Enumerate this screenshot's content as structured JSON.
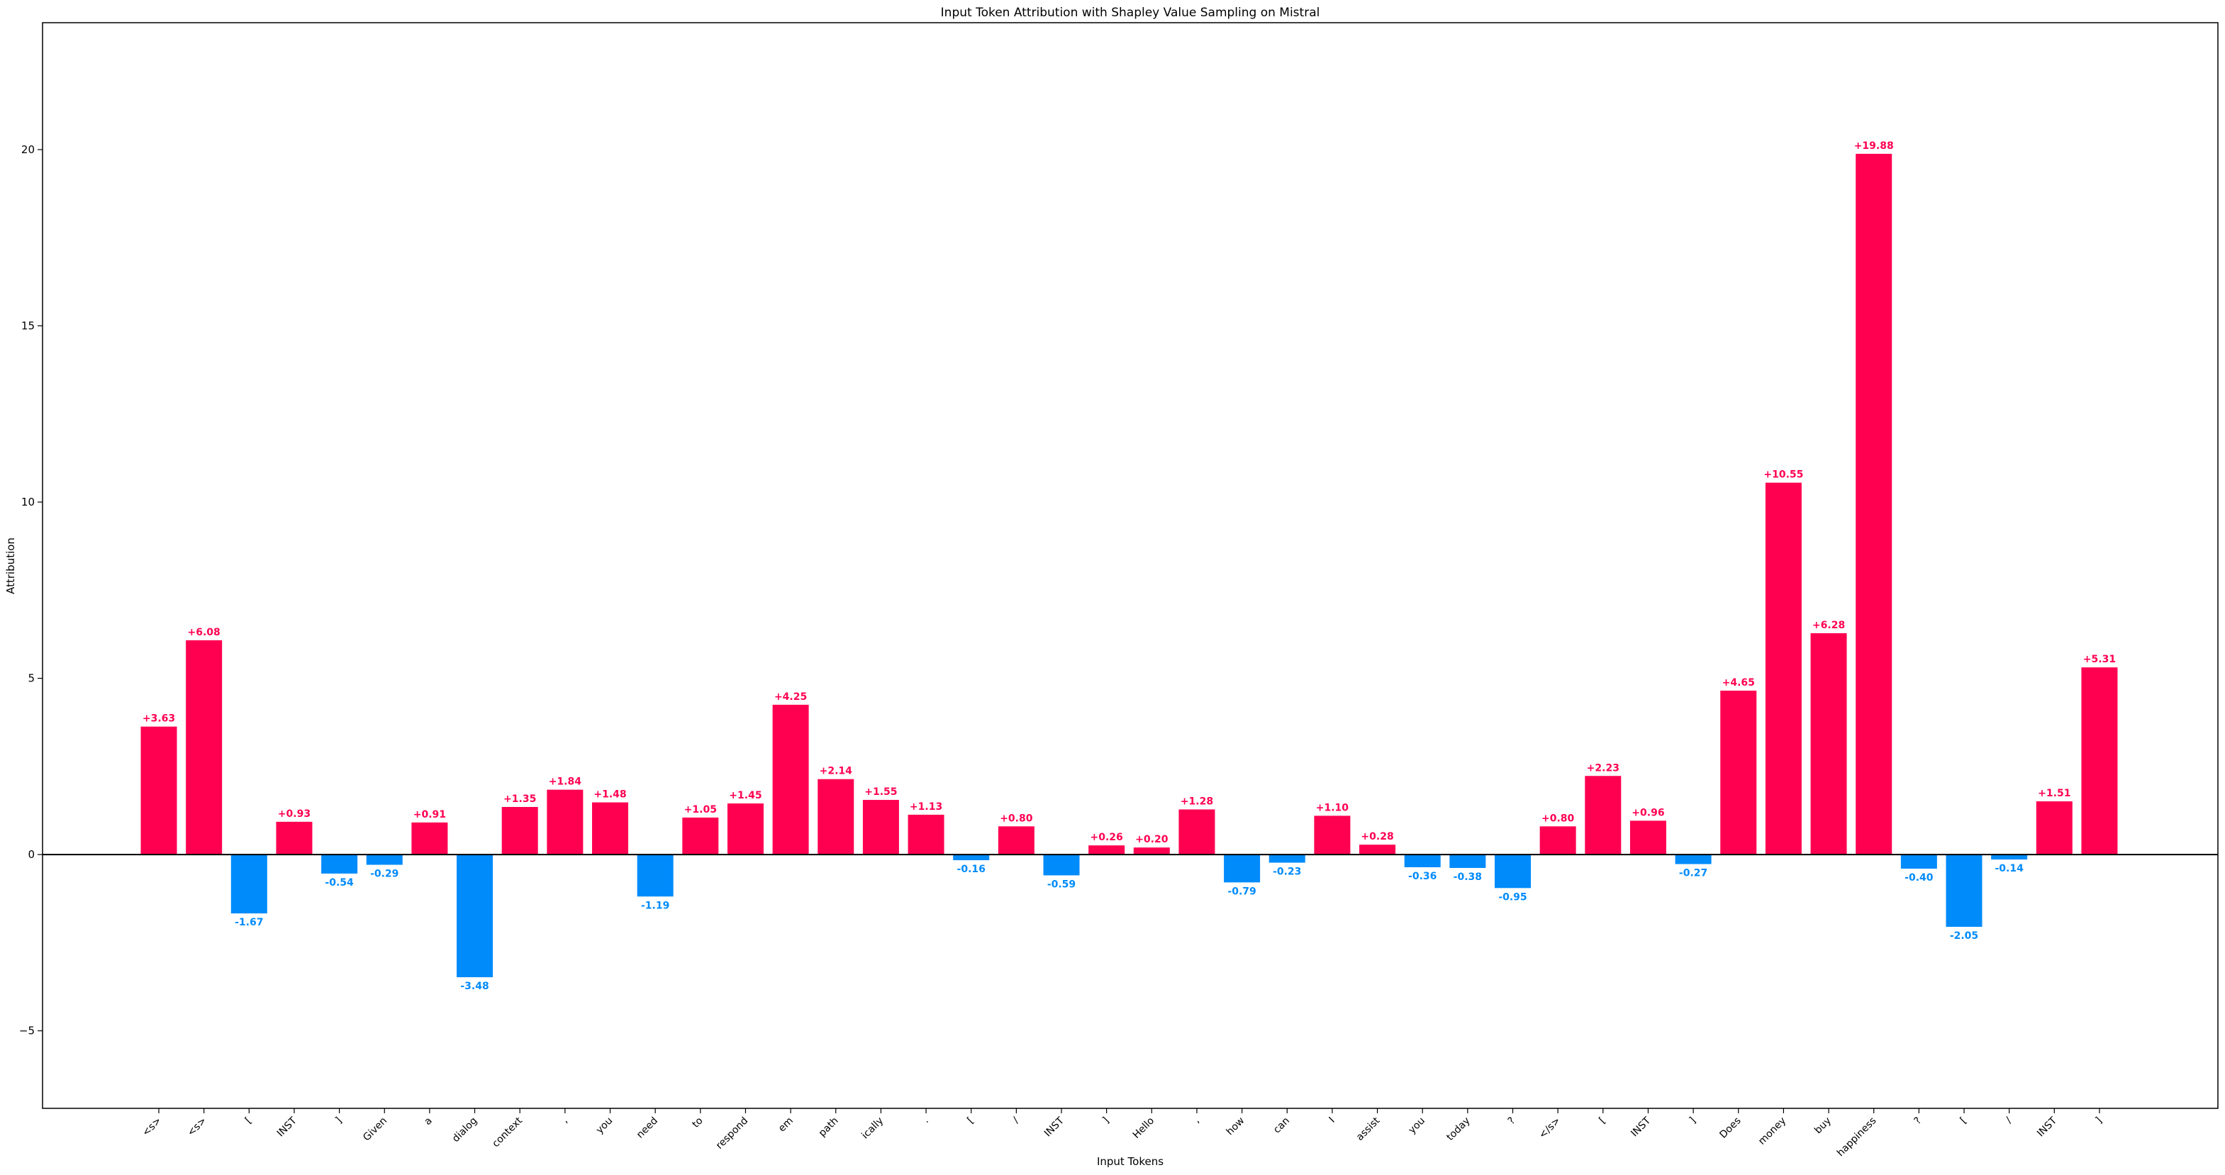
{
  "chart_data": {
    "type": "bar",
    "title": "Input Token Attribution with Shapley Value Sampling on Mistral",
    "xlabel": "Input Tokens",
    "ylabel": "Attribution",
    "ylim": [
      -7.2,
      23.6
    ],
    "yticks": [
      -5,
      0,
      5,
      10,
      15,
      20
    ],
    "ytick_labels": [
      "−5",
      "0",
      "5",
      "10",
      "15",
      "20"
    ],
    "grid": false,
    "legend": "none",
    "colors": {
      "positive": "#ff0051",
      "negative": "#008bfb",
      "zero_line": "#000000"
    },
    "categories": [
      "<s>",
      "<s>",
      "[",
      "INST",
      "]",
      "Given",
      "a",
      "dialog",
      "context",
      ",",
      "you",
      "need",
      "to",
      "respond",
      "em",
      "path",
      "ically",
      ".",
      "[",
      "/",
      "INST",
      "]",
      "Hello",
      ",",
      "how",
      "can",
      "I",
      "assist",
      "you",
      "today",
      "?",
      "</s>",
      "[",
      "INST",
      "]",
      "Does",
      "money",
      "buy",
      "happiness",
      "?",
      "[",
      "/",
      "INST",
      "]"
    ],
    "values": [
      3.63,
      6.08,
      -1.67,
      0.93,
      -0.54,
      -0.29,
      0.91,
      -3.48,
      1.35,
      1.84,
      1.48,
      -1.19,
      1.05,
      1.45,
      4.25,
      2.14,
      1.55,
      1.13,
      -0.16,
      0.8,
      -0.59,
      0.26,
      0.2,
      1.28,
      -0.79,
      -0.23,
      1.1,
      0.28,
      -0.36,
      -0.38,
      -0.95,
      0.8,
      2.23,
      0.96,
      -0.27,
      4.65,
      10.55,
      6.28,
      19.88,
      -0.4,
      -2.05,
      -0.14,
      1.51,
      5.31
    ],
    "value_labels": [
      "+3.63",
      "+6.08",
      "-1.67",
      "+0.93",
      "-0.54",
      "-0.29",
      "+0.91",
      "-3.48",
      "+1.35",
      "+1.84",
      "+1.48",
      "-1.19",
      "+1.05",
      "+1.45",
      "+4.25",
      "+2.14",
      "+1.55",
      "+1.13",
      "-0.16",
      "+0.80",
      "-0.59",
      "+0.26",
      "+0.20",
      "+1.28",
      "-0.79",
      "-0.23",
      "+1.10",
      "+0.28",
      "-0.36",
      "-0.38",
      "-0.95",
      "+0.80",
      "+2.23",
      "+0.96",
      "-0.27",
      "+4.65",
      "+10.55",
      "+6.28",
      "+19.88",
      "-0.40",
      "-2.05",
      "-0.14",
      "+1.51",
      "+5.31"
    ]
  }
}
